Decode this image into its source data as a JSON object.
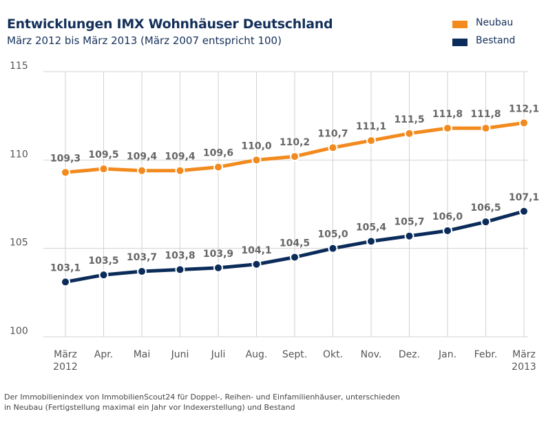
{
  "title": "Entwicklungen IMX Wohnhäuser Deutschland",
  "subtitle": "März 2012 bis März 2013 (März 2007 entspricht 100)",
  "footnote_lines": [
    "Der Immobilienindex von ImmobilienScout24 für Doppel-, Reihen- und Einfamilienhäuser, unterschieden",
    "in Neubau (Fertigstellung maximal ein Jahr vor Indexerstellung) und Bestand"
  ],
  "chart_data": {
    "type": "line",
    "title": "Entwicklungen IMX Wohnhäuser Deutschland",
    "subtitle": "März 2012 bis März 2013 (März 2007 entspricht 100)",
    "categories": [
      [
        "März",
        "2012"
      ],
      [
        "Apr."
      ],
      [
        "Mai"
      ],
      [
        "Juni"
      ],
      [
        "Juli"
      ],
      [
        "Aug."
      ],
      [
        "Sept."
      ],
      [
        "Okt."
      ],
      [
        "Nov."
      ],
      [
        "Dez."
      ],
      [
        "Jan."
      ],
      [
        "Febr."
      ],
      [
        "März",
        "2013"
      ]
    ],
    "ylim": [
      100,
      115
    ],
    "yticks": [
      100,
      105,
      110,
      115
    ],
    "grid": true,
    "legend_position": "top-right",
    "series": [
      {
        "name": "Neubau",
        "color": "#f28a1e",
        "values": [
          109.3,
          109.5,
          109.4,
          109.4,
          109.6,
          110.0,
          110.2,
          110.7,
          111.1,
          111.5,
          111.8,
          111.8,
          112.1
        ],
        "labels": [
          "109,3",
          "109,5",
          "109,4",
          "109,4",
          "109,6",
          "110,0",
          "110,2",
          "110,7",
          "111,1",
          "111,5",
          "111,8",
          "111,8",
          "112,1"
        ]
      },
      {
        "name": "Bestand",
        "color": "#0b2c5a",
        "values": [
          103.1,
          103.5,
          103.7,
          103.8,
          103.9,
          104.1,
          104.5,
          105.0,
          105.4,
          105.7,
          106.0,
          106.5,
          107.1
        ],
        "labels": [
          "103,1",
          "103,5",
          "103,7",
          "103,8",
          "103,9",
          "104,1",
          "104,5",
          "105,0",
          "105,4",
          "105,7",
          "106,0",
          "106,5",
          "107,1"
        ]
      }
    ]
  }
}
